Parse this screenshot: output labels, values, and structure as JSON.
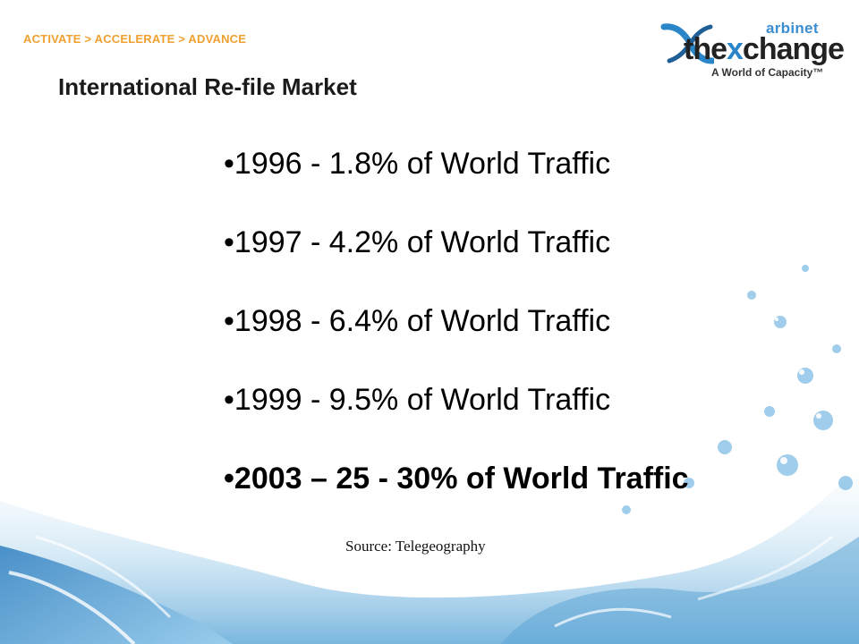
{
  "header": {
    "tagline": "ACTIVATE > ACCELERATE > ADVANCE"
  },
  "logo": {
    "sub": "arbinet",
    "main_prefix": "the",
    "main_highlight": "x",
    "main_suffix": "change",
    "tag": "A World of Capacity™"
  },
  "slide": {
    "title": "International Re-file Market",
    "bullets": [
      "•1996 - 1.8% of World Traffic",
      "•1997 - 4.2% of World Traffic",
      "•1998 - 6.4% of World Traffic",
      "•1999 - 9.5% of World Traffic",
      "•2003 – 25 - 30% of World Traffic"
    ],
    "source": "Source: Telegeography"
  },
  "colors": {
    "tagline": "#f0a030",
    "logo_blue": "#2a86c8",
    "water_blue": "#3f8fc8"
  },
  "icons": {
    "logo_mark": "arbinet-x-mark-icon",
    "background": "water-splash-graphic"
  }
}
